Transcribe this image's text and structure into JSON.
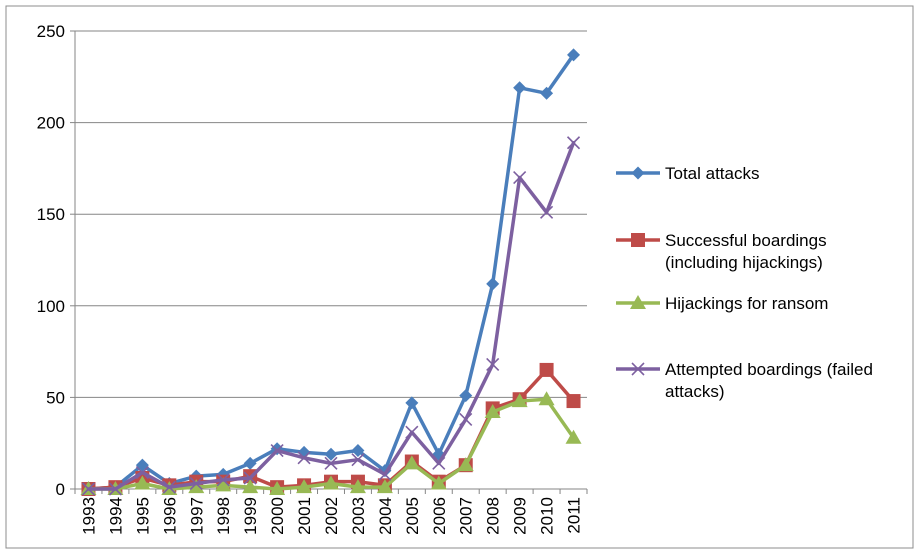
{
  "chart_data": {
    "type": "line",
    "categories": [
      "1993",
      "1994",
      "1995",
      "1996",
      "1997",
      "1998",
      "1999",
      "2000",
      "2001",
      "2002",
      "2003",
      "2004",
      "2005",
      "2006",
      "2007",
      "2008",
      "2009",
      "2010",
      "2011"
    ],
    "ylim": [
      0,
      250
    ],
    "yticks": [
      0,
      50,
      100,
      150,
      200,
      250
    ],
    "grid": "horizontal",
    "legend_position": "right",
    "series": [
      {
        "name": "Total attacks",
        "color": "#4A7EBB",
        "marker": "diamond",
        "values": [
          0,
          1,
          13,
          3,
          7,
          8,
          14,
          22,
          20,
          19,
          21,
          10,
          47,
          19,
          51,
          112,
          219,
          216,
          237
        ]
      },
      {
        "name": "Successful boardings (including hijackings)",
        "color": "#BE4B48",
        "marker": "square",
        "values": [
          0,
          1,
          6,
          2,
          4,
          4,
          7,
          1,
          2,
          4,
          4,
          2,
          15,
          4,
          13,
          44,
          49,
          65,
          48
        ]
      },
      {
        "name": "Hijackings for ransom",
        "color": "#98B954",
        "marker": "triangle",
        "values": [
          0,
          0,
          3,
          0,
          1,
          2,
          1,
          0,
          1,
          3,
          1,
          1,
          14,
          3,
          13,
          42,
          48,
          49,
          28
        ]
      },
      {
        "name": "Attempted boardings (failed attacks)",
        "color": "#7D60A0",
        "marker": "x",
        "values": [
          0,
          0,
          9,
          1,
          3,
          5,
          6,
          21,
          17,
          14,
          16,
          8,
          31,
          14,
          38,
          68,
          170,
          151,
          189
        ]
      }
    ]
  }
}
